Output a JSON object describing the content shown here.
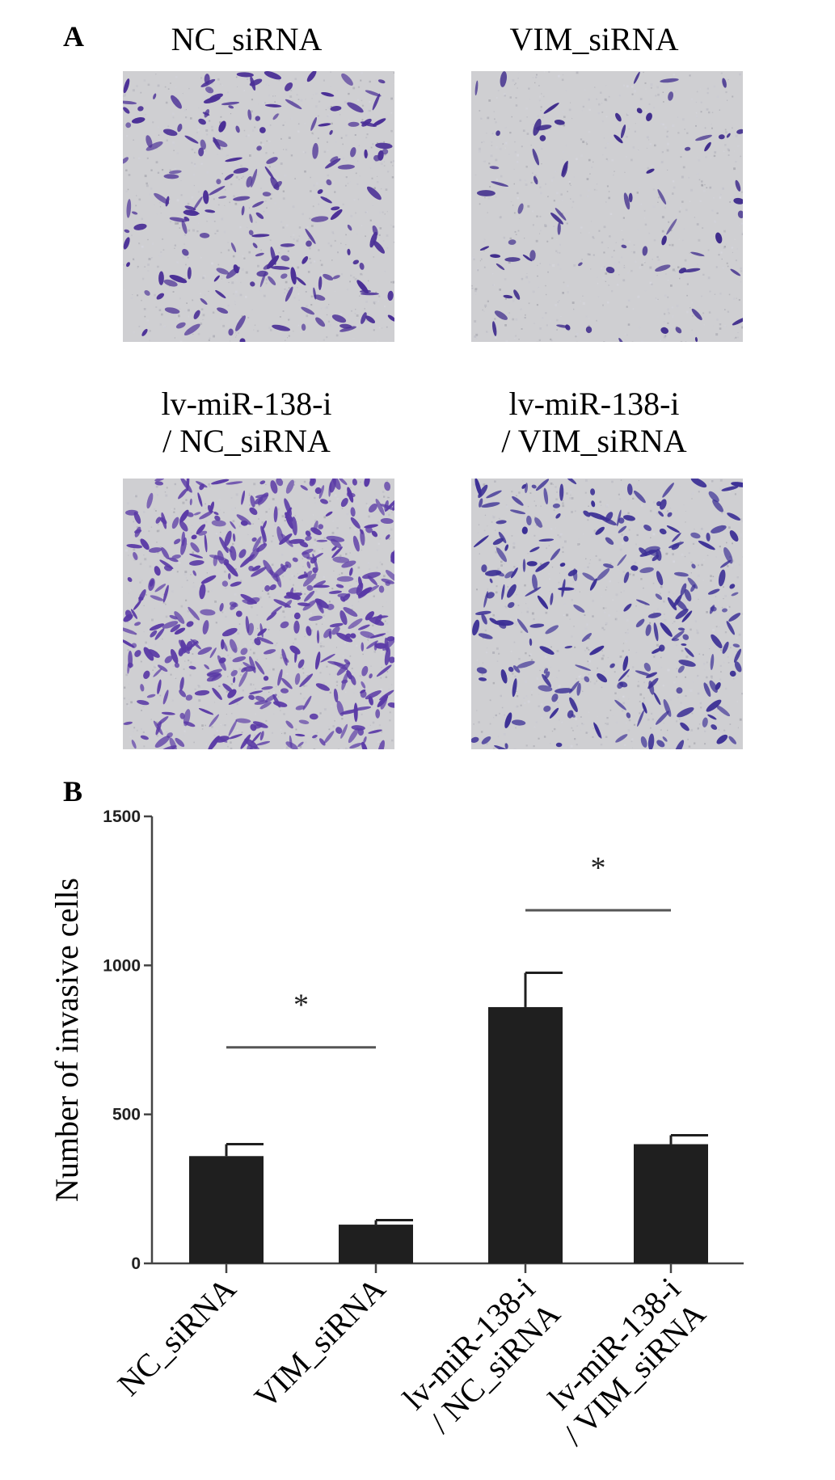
{
  "panels": {
    "a": "A",
    "b": "B"
  },
  "images": [
    {
      "label_lines": [
        "NC_siRNA"
      ],
      "density": 0.35,
      "cell_color": "#4a2f96"
    },
    {
      "label_lines": [
        "VIM_siRNA"
      ],
      "density": 0.14,
      "cell_color": "#3f2c8c"
    },
    {
      "label_lines": [
        "lv-miR-138-i",
        "/ NC_siRNA"
      ],
      "density": 0.85,
      "cell_color": "#5a3aa6"
    },
    {
      "label_lines": [
        "lv-miR-138-i",
        "/ VIM_siRNA"
      ],
      "density": 0.45,
      "cell_color": "#3b2f95"
    }
  ],
  "chart_data": {
    "type": "bar",
    "ylabel": "Number of invasive cells",
    "xlabel": "",
    "title": "",
    "ylim": [
      0,
      1500
    ],
    "yticks": [
      0,
      500,
      1000,
      1500
    ],
    "categories": [
      [
        "NC_siRNA"
      ],
      [
        "VIM_siRNA"
      ],
      [
        "lv-miR-138-i",
        "/ NC_siRNA"
      ],
      [
        "lv-miR-138-i",
        "/ VIM_siRNA"
      ]
    ],
    "values": [
      360,
      130,
      860,
      400
    ],
    "errors": [
      40,
      15,
      115,
      30
    ],
    "bar_color": "#1f1f1f",
    "significance": [
      {
        "from": 0,
        "to": 1,
        "y": 725,
        "label": "*"
      },
      {
        "from": 2,
        "to": 3,
        "y": 1185,
        "label": "*"
      }
    ],
    "grid": false,
    "legend": "none"
  }
}
